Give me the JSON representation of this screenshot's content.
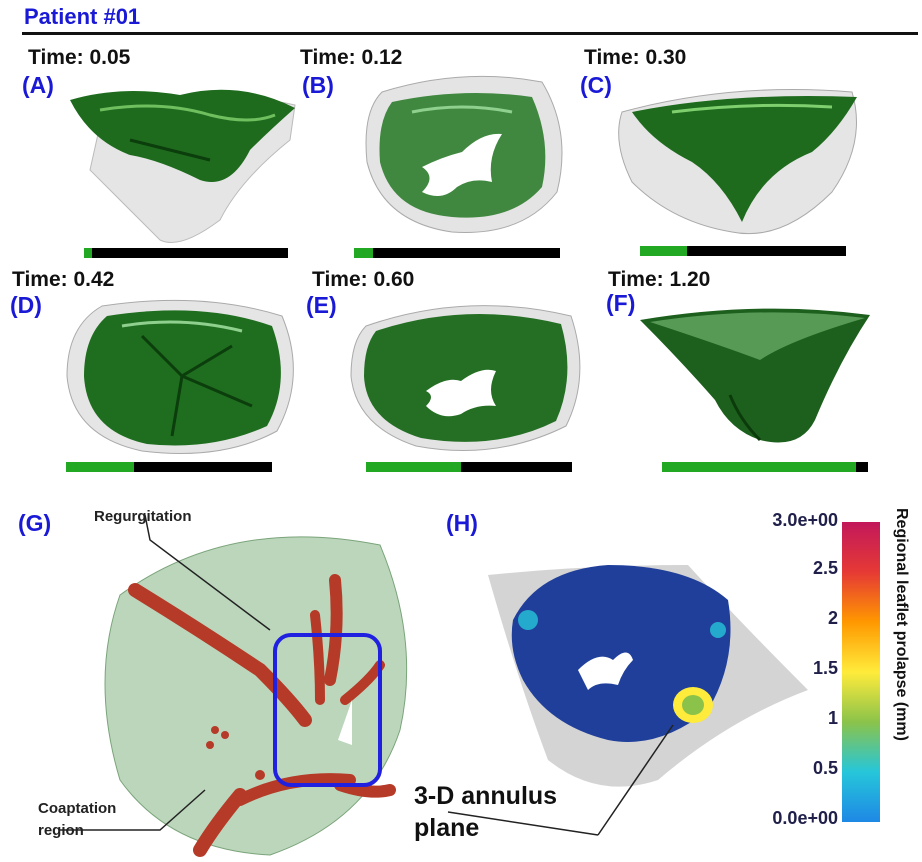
{
  "header": {
    "title": "Patient #01"
  },
  "panels": [
    {
      "id": "A",
      "label": "(A)",
      "time_label": "Time: 0.05",
      "progress": 0.04
    },
    {
      "id": "B",
      "label": "(B)",
      "time_label": "Time: 0.12",
      "progress": 0.09
    },
    {
      "id": "C",
      "label": "(C)",
      "time_label": "Time: 0.30",
      "progress": 0.23
    },
    {
      "id": "D",
      "label": "(D)",
      "time_label": "Time: 0.42",
      "progress": 0.33
    },
    {
      "id": "E",
      "label": "(E)",
      "time_label": "Time: 0.60",
      "progress": 0.46
    },
    {
      "id": "F",
      "label": "(F)",
      "time_label": "Time: 1.20",
      "progress": 0.94
    }
  ],
  "panel_g": {
    "label": "(G)",
    "annotation_regurgitation": "Regurgitation",
    "annotation_coaptation_line1": "Coaptation",
    "annotation_coaptation_line2": "region"
  },
  "panel_h": {
    "label": "(H)",
    "annotation_line1": "3-D annulus",
    "annotation_line2": "plane",
    "colorbar": {
      "title": "Regional leaflet prolapse (mm)",
      "ticks": [
        "3.0e+00",
        "2.5",
        "2",
        "1.5",
        "1",
        "0.5",
        "0.0e+00"
      ],
      "colors": [
        "#c2185b",
        "#e53935",
        "#ff9800",
        "#ffeb3b",
        "#8bc34a",
        "#26c6da",
        "#1e88e5"
      ]
    }
  },
  "colors": {
    "label_blue": "#1a1ad6",
    "leaflet_green": "#1e6b1e",
    "progress_green": "#22a822",
    "prolapse_red": "#b53a28",
    "highlight_box": "#2020e0"
  }
}
